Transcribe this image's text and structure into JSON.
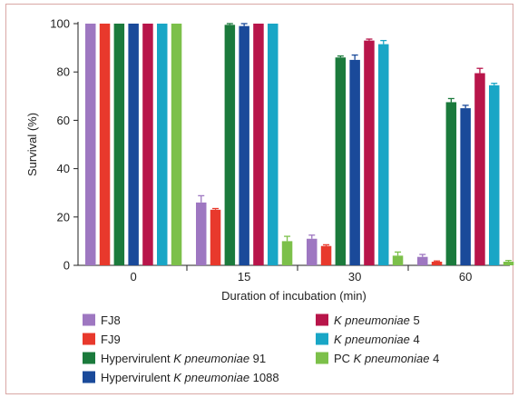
{
  "chart_data": {
    "type": "bar",
    "categories": [
      "0",
      "15",
      "30",
      "60"
    ],
    "xlabel": "Duration of incubation (min)",
    "ylabel": "Survival (%)",
    "ylim": [
      0,
      100
    ],
    "yticks": [
      "0",
      "20",
      "40",
      "60",
      "80",
      "100"
    ],
    "legend_placement": "bottom",
    "series": [
      {
        "name": "FJ8",
        "parts": [
          {
            "text": "FJ8",
            "italic": false
          }
        ],
        "color": "#9e77c1",
        "values": [
          100,
          26,
          11,
          3.5
        ],
        "errors": [
          0,
          2.8,
          1.5,
          1
        ]
      },
      {
        "name": "FJ9",
        "parts": [
          {
            "text": "FJ9",
            "italic": false
          }
        ],
        "color": "#e8392c",
        "values": [
          100,
          23,
          8,
          1.5
        ],
        "errors": [
          0,
          0.5,
          0.5,
          0.3
        ]
      },
      {
        "name": "Hypervirulent K pneumoniae 91",
        "parts": [
          {
            "text": "Hypervirulent ",
            "italic": false
          },
          {
            "text": "K pneumoniae",
            "italic": true
          },
          {
            "text": " 91",
            "italic": false
          }
        ],
        "color": "#1b7a3c",
        "values": [
          100,
          99.5,
          86,
          67.5
        ],
        "errors": [
          0,
          0.5,
          0.6,
          1.5
        ]
      },
      {
        "name": "Hypervirulent K pneumoniae 1088",
        "parts": [
          {
            "text": "Hypervirulent ",
            "italic": false
          },
          {
            "text": "K pneumoniae",
            "italic": true
          },
          {
            "text": " 1088",
            "italic": false
          }
        ],
        "color": "#1a4a9a",
        "values": [
          100,
          99,
          85,
          65
        ],
        "errors": [
          0,
          1,
          2,
          1.2
        ]
      },
      {
        "name": "K pneumoniae 5",
        "parts": [
          {
            "text": "K pneumoniae",
            "italic": true
          },
          {
            "text": " 5",
            "italic": false
          }
        ],
        "color": "#b8154a",
        "values": [
          100,
          100,
          93,
          79.5
        ],
        "errors": [
          0,
          0,
          0.6,
          2
        ]
      },
      {
        "name": "K pneumoniae 4",
        "parts": [
          {
            "text": "K pneumoniae",
            "italic": true
          },
          {
            "text": " 4",
            "italic": false
          }
        ],
        "color": "#19a6c6",
        "values": [
          100,
          100,
          91.5,
          74.5
        ],
        "errors": [
          0,
          0,
          1.5,
          0.8
        ]
      },
      {
        "name": "PC K pneumoniae 4",
        "parts": [
          {
            "text": "PC ",
            "italic": false
          },
          {
            "text": "K pneumoniae",
            "italic": true
          },
          {
            "text": " 4",
            "italic": false
          }
        ],
        "color": "#7cc04a",
        "values": [
          100,
          10,
          4,
          1.5
        ],
        "errors": [
          0,
          2,
          1.5,
          0.5
        ]
      }
    ]
  }
}
